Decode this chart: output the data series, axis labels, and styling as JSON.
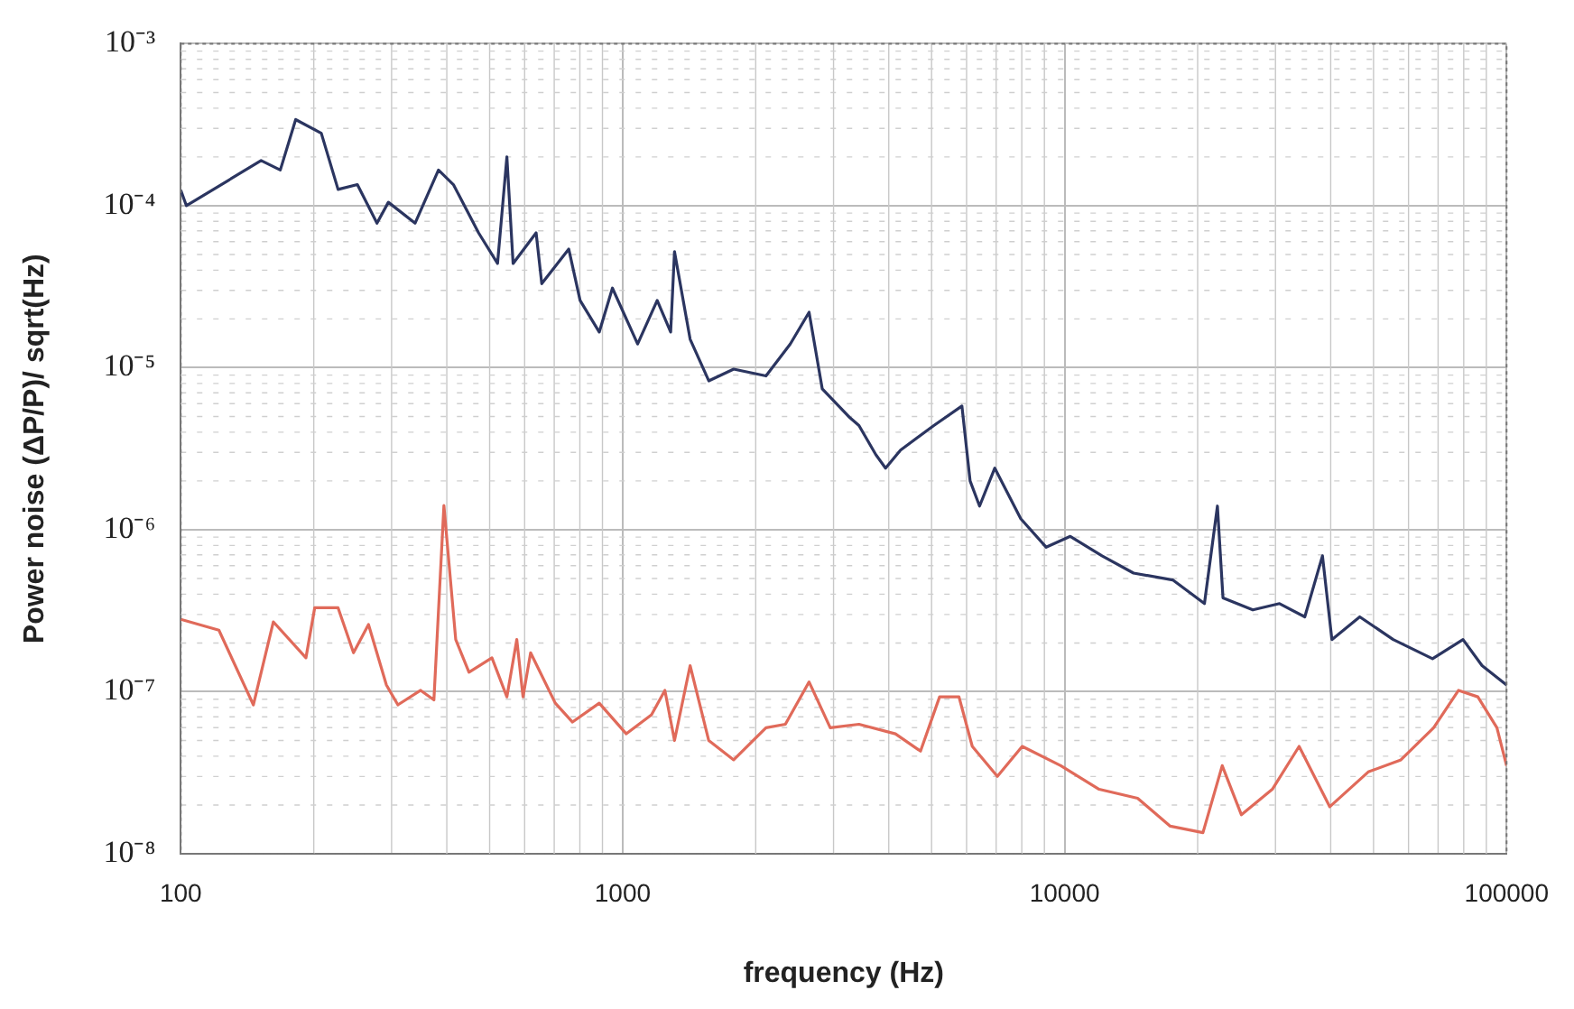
{
  "chart_data": {
    "type": "line",
    "xlabel": "frequency (Hz)",
    "ylabel": "Power noise (ΔP/P)/ sqrt(Hz)",
    "log": "xy",
    "grid": true,
    "legend": false,
    "marker": "none",
    "line_style": "solid",
    "xlim": [
      100,
      100000
    ],
    "xticks": [
      100,
      1000,
      10000,
      100000
    ],
    "ylim": [
      1e-08,
      0.001
    ],
    "yticks": [
      {
        "value": 0.001,
        "label": "10⁻³"
      },
      {
        "value": 0.0001,
        "label": "10⁻⁴"
      },
      {
        "value": 1e-05,
        "label": "10⁻⁵"
      },
      {
        "value": 1e-06,
        "label": "10⁻⁶"
      },
      {
        "value": 1e-07,
        "label": "10⁻⁷"
      },
      {
        "value": 1e-08,
        "label": "10⁻⁸"
      }
    ],
    "series": [
      {
        "color": "#2b3560",
        "x": [
          100,
          103,
          152,
          168,
          182,
          208,
          227,
          251,
          278,
          295,
          339,
          383,
          414,
          472,
          521,
          547,
          565,
          637,
          656,
          755,
          801,
          885,
          948,
          1081,
          1197,
          1284,
          1310,
          1421,
          1566,
          1783,
          2110,
          2394,
          2641,
          2829,
          3271,
          3425,
          3742,
          3934,
          4253,
          5059,
          5856,
          6111,
          6420,
          6950,
          7957,
          9086,
          10300,
          12150,
          14320,
          17560,
          20720,
          22170,
          22820,
          26660,
          30640,
          34950,
          38320,
          40250,
          46540,
          55400,
          68000,
          79700,
          88000,
          100000
        ],
        "values": [
          0.000125,
          0.0001,
          0.00019,
          0.000166,
          0.00034,
          0.00028,
          0.000126,
          0.000135,
          7.8e-05,
          0.000105,
          7.8e-05,
          0.000166,
          0.000135,
          6.8e-05,
          4.4e-05,
          0.0002,
          4.4e-05,
          6.8e-05,
          3.3e-05,
          5.4e-05,
          2.6e-05,
          1.66e-05,
          3.1e-05,
          1.4e-05,
          2.6e-05,
          1.66e-05,
          5.2e-05,
          1.5e-05,
          8.3e-06,
          9.8e-06,
          8.9e-06,
          1.4e-05,
          2.2e-05,
          7.4e-06,
          4.9e-06,
          4.4e-06,
          2.9e-06,
          2.4e-06,
          3.1e-06,
          4.4e-06,
          5.8e-06,
          2e-06,
          1.4e-06,
          2.4e-06,
          1.17e-06,
          7.8e-07,
          9.1e-07,
          6.9e-07,
          5.4e-07,
          4.9e-07,
          3.5e-07,
          1.4e-06,
          3.8e-07,
          3.2e-07,
          3.5e-07,
          2.9e-07,
          6.9e-07,
          2.1e-07,
          2.9e-07,
          2.1e-07,
          1.6e-07,
          2.1e-07,
          1.45e-07,
          1.1e-07
        ]
      },
      {
        "color": "#e06a5a",
        "x": [
          100,
          122,
          146,
          162,
          192,
          201,
          227,
          246,
          266,
          292,
          310,
          349,
          374,
          394,
          419,
          449,
          506,
          547,
          576,
          595,
          619,
          704,
          770,
          885,
          1019,
          1162,
          1246,
          1310,
          1421,
          1566,
          1783,
          2110,
          2334,
          2641,
          2949,
          3425,
          4142,
          4720,
          5213,
          5767,
          6181,
          7044,
          8018,
          9800,
          11970,
          14630,
          17340,
          20560,
          22730,
          25120,
          29510,
          33930,
          39810,
          48640,
          57670,
          68390,
          77860,
          86100,
          95100,
          100000
        ],
        "values": [
          2.8e-07,
          2.4e-07,
          8.3e-08,
          2.7e-07,
          1.62e-07,
          3.3e-07,
          3.3e-07,
          1.74e-07,
          2.6e-07,
          1.1e-07,
          8.3e-08,
          1.02e-07,
          8.9e-08,
          1.41e-06,
          2.1e-07,
          1.32e-07,
          1.62e-07,
          9.3e-08,
          2.1e-07,
          9.3e-08,
          1.74e-07,
          8.5e-08,
          6.5e-08,
          8.5e-08,
          5.5e-08,
          7.2e-08,
          1.02e-07,
          5e-08,
          1.45e-07,
          5e-08,
          3.8e-08,
          6e-08,
          6.3e-08,
          1.15e-07,
          6e-08,
          6.3e-08,
          5.5e-08,
          4.3e-08,
          9.3e-08,
          9.3e-08,
          4.6e-08,
          3e-08,
          4.6e-08,
          3.5e-08,
          2.5e-08,
          2.2e-08,
          1.48e-08,
          1.35e-08,
          3.5e-08,
          1.74e-08,
          2.5e-08,
          4.6e-08,
          1.95e-08,
          3.2e-08,
          3.8e-08,
          6e-08,
          1.02e-07,
          9.3e-08,
          6e-08,
          3.5e-08
        ]
      }
    ]
  }
}
